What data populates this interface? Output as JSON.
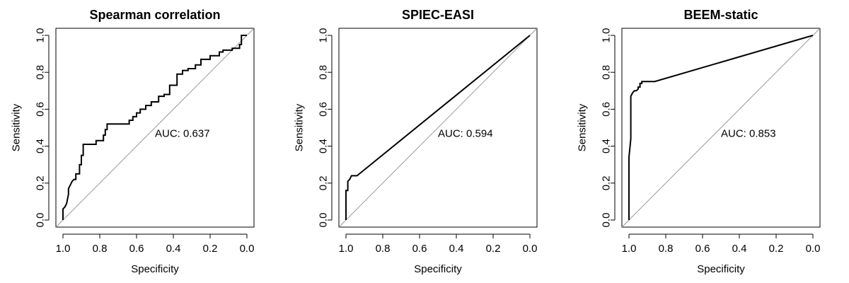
{
  "chart_data": [
    {
      "type": "line",
      "title": "Spearman correlation",
      "xlabel": "Specificity",
      "ylabel": "Sensitivity",
      "xlim": [
        1.0,
        0.0
      ],
      "ylim": [
        0.0,
        1.0
      ],
      "x_ticks": [
        "1.0",
        "0.8",
        "0.6",
        "0.4",
        "0.2",
        "0.0"
      ],
      "y_ticks": [
        "0.0",
        "0.2",
        "0.4",
        "0.6",
        "0.8",
        "1.0"
      ],
      "annotation": "AUC: 0.637",
      "grid": false,
      "reference_line": "diagonal",
      "series": [
        {
          "specificity": [
            1.0,
            1.0,
            0.99,
            0.98,
            0.97,
            0.97,
            0.96,
            0.95,
            0.94,
            0.93,
            0.93,
            0.91,
            0.91,
            0.9,
            0.9,
            0.89,
            0.89,
            0.82,
            0.82,
            0.78,
            0.78,
            0.77,
            0.77,
            0.76,
            0.76,
            0.64,
            0.64,
            0.62,
            0.62,
            0.6,
            0.6,
            0.58,
            0.58,
            0.55,
            0.55,
            0.52,
            0.52,
            0.48,
            0.48,
            0.45,
            0.45,
            0.42,
            0.42,
            0.38,
            0.38,
            0.35,
            0.35,
            0.32,
            0.32,
            0.28,
            0.28,
            0.25,
            0.25,
            0.2,
            0.2,
            0.15,
            0.15,
            0.13,
            0.13,
            0.08,
            0.08,
            0.04,
            0.04,
            0.03,
            0.03,
            0.0
          ],
          "sensitivity": [
            0.0,
            0.06,
            0.07,
            0.09,
            0.14,
            0.17,
            0.19,
            0.21,
            0.22,
            0.22,
            0.25,
            0.25,
            0.3,
            0.3,
            0.35,
            0.35,
            0.41,
            0.41,
            0.43,
            0.43,
            0.46,
            0.46,
            0.49,
            0.49,
            0.52,
            0.52,
            0.54,
            0.54,
            0.56,
            0.56,
            0.58,
            0.58,
            0.6,
            0.6,
            0.62,
            0.62,
            0.64,
            0.64,
            0.67,
            0.67,
            0.68,
            0.68,
            0.73,
            0.73,
            0.79,
            0.79,
            0.81,
            0.81,
            0.82,
            0.82,
            0.84,
            0.84,
            0.87,
            0.87,
            0.89,
            0.89,
            0.91,
            0.91,
            0.92,
            0.92,
            0.93,
            0.93,
            0.95,
            0.95,
            1.0,
            1.0
          ]
        }
      ]
    },
    {
      "type": "line",
      "title": "SPIEC-EASI",
      "xlabel": "Specificity",
      "ylabel": "Sensitivity",
      "xlim": [
        1.0,
        0.0
      ],
      "ylim": [
        0.0,
        1.0
      ],
      "x_ticks": [
        "1.0",
        "0.8",
        "0.6",
        "0.4",
        "0.2",
        "0.0"
      ],
      "y_ticks": [
        "0.0",
        "0.2",
        "0.4",
        "0.6",
        "0.8",
        "1.0"
      ],
      "annotation": "AUC: 0.594",
      "grid": false,
      "reference_line": "diagonal",
      "series": [
        {
          "specificity": [
            1.0,
            1.0,
            0.99,
            0.99,
            0.98,
            0.97,
            0.94,
            0.0
          ],
          "sensitivity": [
            0.0,
            0.16,
            0.16,
            0.21,
            0.22,
            0.24,
            0.24,
            1.0
          ]
        }
      ]
    },
    {
      "type": "line",
      "title": "BEEM-static",
      "xlabel": "Specificity",
      "ylabel": "Sensitivity",
      "xlim": [
        1.0,
        0.0
      ],
      "ylim": [
        0.0,
        1.0
      ],
      "x_ticks": [
        "1.0",
        "0.8",
        "0.6",
        "0.4",
        "0.2",
        "0.0"
      ],
      "y_ticks": [
        "0.0",
        "0.2",
        "0.4",
        "0.6",
        "0.8",
        "1.0"
      ],
      "annotation": "AUC: 0.853",
      "grid": false,
      "reference_line": "diagonal",
      "series": [
        {
          "specificity": [
            1.0,
            1.0,
            0.99,
            0.99,
            0.99,
            0.98,
            0.97,
            0.96,
            0.95,
            0.95,
            0.94,
            0.94,
            0.93,
            0.93,
            0.86,
            0.0
          ],
          "sensitivity": [
            0.0,
            0.34,
            0.44,
            0.63,
            0.67,
            0.69,
            0.7,
            0.7,
            0.71,
            0.72,
            0.72,
            0.74,
            0.74,
            0.75,
            0.75,
            1.0
          ]
        }
      ]
    }
  ]
}
